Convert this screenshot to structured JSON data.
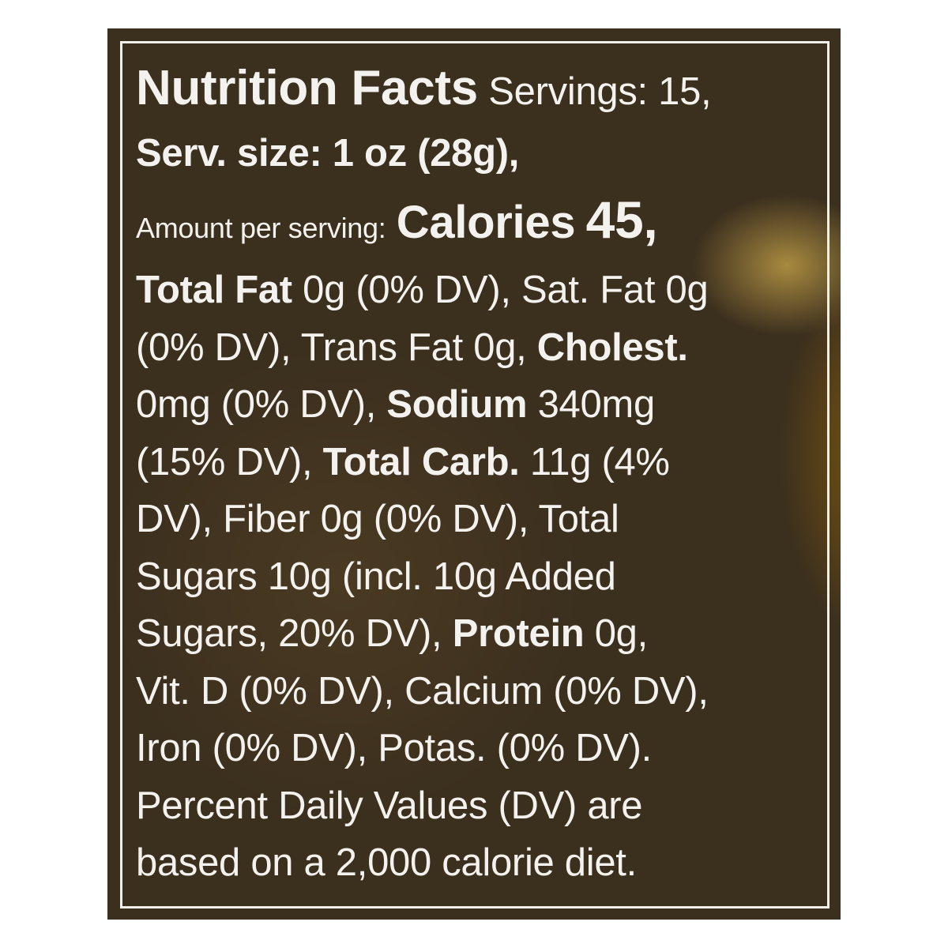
{
  "title": "Nutrition Facts",
  "servings": "Servings: 15,",
  "serving_size": "Serv. size: 1 oz (28g),",
  "amount_per_serving": "Amount per serving:",
  "calories_label": "Calories",
  "calories_value": "45,",
  "lines": [
    [
      {
        "t": "Total Fat",
        "b": true
      },
      {
        "t": " 0g (0% DV), Sat. Fat 0g",
        "b": false
      }
    ],
    [
      {
        "t": "(0% DV), Trans Fat 0g, ",
        "b": false
      },
      {
        "t": "Cholest.",
        "b": true
      }
    ],
    [
      {
        "t": "0mg (0% DV), ",
        "b": false
      },
      {
        "t": "Sodium",
        "b": true
      },
      {
        "t": " 340mg",
        "b": false
      }
    ],
    [
      {
        "t": "(15% DV), ",
        "b": false
      },
      {
        "t": "Total Carb.",
        "b": true
      },
      {
        "t": " 11g (4%",
        "b": false
      }
    ],
    [
      {
        "t": "DV), Fiber 0g (0% DV), Total",
        "b": false
      }
    ],
    [
      {
        "t": "Sugars 10g (incl. 10g Added",
        "b": false
      }
    ],
    [
      {
        "t": "Sugars, 20% DV), ",
        "b": false
      },
      {
        "t": "Protein",
        "b": true
      },
      {
        "t": " 0g,",
        "b": false
      }
    ],
    [
      {
        "t": "Vit. D (0% DV), Calcium (0% DV),",
        "b": false
      }
    ],
    [
      {
        "t": "Iron (0% DV), Potas. (0% DV).",
        "b": false
      }
    ],
    [
      {
        "t": "Percent Daily Values (DV) are",
        "b": false
      }
    ],
    [
      {
        "t": "based on a 2,000 calorie diet.",
        "b": false
      }
    ]
  ],
  "colors": {
    "background": "#3b2f1e",
    "text": "#f4f2ee"
  }
}
